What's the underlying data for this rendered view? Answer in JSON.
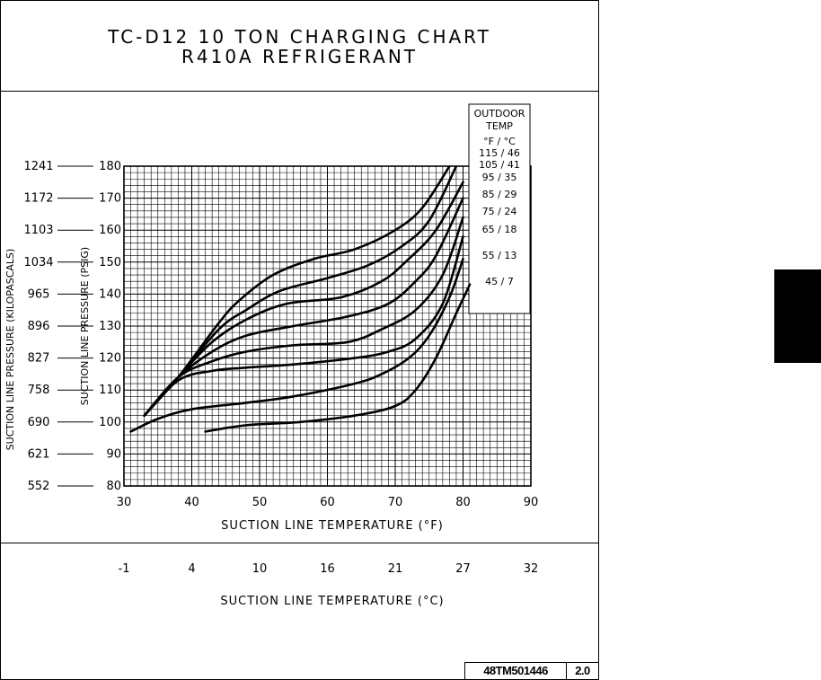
{
  "title_line1": "TC-D12 10 TON CHARGING CHART",
  "title_line2": "R410A REFRIGERANT",
  "doc_number": "48TM501446",
  "doc_version": "2.0",
  "chart_data": {
    "type": "line",
    "xlabel": "SUCTION LINE TEMPERATURE (°F)",
    "ylabel": "SUCTION LINE PRESSURE (PSIG)",
    "ylabel_secondary": "SUCTION LINE PRESSURE (KILOPASCALS)",
    "xlabel_secondary": "SUCTION LINE TEMPERATURE (°C)",
    "xlim": [
      30,
      90
    ],
    "ylim": [
      80,
      180
    ],
    "x_ticks": [
      30,
      40,
      50,
      60,
      70,
      80,
      90
    ],
    "y_ticks": [
      80,
      90,
      100,
      110,
      120,
      130,
      140,
      150,
      160,
      170,
      180
    ],
    "y_ticks_kpa": [
      "552",
      "621",
      "690",
      "758",
      "827",
      "896",
      "965",
      "1034",
      "1103",
      "1172",
      "1241"
    ],
    "x_ticks_celsius": [
      "-1",
      "4",
      "10",
      "16",
      "21",
      "27",
      "32"
    ],
    "grid": true,
    "legend_title_line1": "OUTDOOR",
    "legend_title_line2": "TEMP",
    "legend_units": "°F / °C",
    "series": [
      {
        "name": "115 / 46",
        "points": [
          [
            33,
            102
          ],
          [
            38,
            114
          ],
          [
            44,
            131
          ],
          [
            47,
            138
          ],
          [
            52,
            146
          ],
          [
            58,
            151
          ],
          [
            64,
            154
          ],
          [
            70,
            160
          ],
          [
            74,
            167
          ],
          [
            78,
            180
          ]
        ]
      },
      {
        "name": "105 / 41",
        "points": [
          [
            33,
            102
          ],
          [
            38,
            114
          ],
          [
            44,
            129
          ],
          [
            48,
            135
          ],
          [
            53,
            141
          ],
          [
            60,
            145
          ],
          [
            66,
            149
          ],
          [
            71,
            155
          ],
          [
            75,
            163
          ],
          [
            79,
            180
          ]
        ]
      },
      {
        "name": "95 / 35",
        "points": [
          [
            33,
            102
          ],
          [
            38,
            114
          ],
          [
            43,
            125
          ],
          [
            48,
            132
          ],
          [
            54,
            137
          ],
          [
            62,
            139
          ],
          [
            68,
            144
          ],
          [
            72,
            151
          ],
          [
            76,
            160
          ],
          [
            80,
            175
          ]
        ]
      },
      {
        "name": "85 / 29",
        "points": [
          [
            33,
            102
          ],
          [
            38,
            114
          ],
          [
            43,
            122
          ],
          [
            48,
            127
          ],
          [
            55,
            130
          ],
          [
            63,
            133
          ],
          [
            69,
            137
          ],
          [
            73,
            144
          ],
          [
            76,
            152
          ],
          [
            80,
            170
          ]
        ]
      },
      {
        "name": "75 / 24",
        "points": [
          [
            33,
            102
          ],
          [
            38,
            114
          ],
          [
            43,
            119
          ],
          [
            48,
            122
          ],
          [
            55,
            124
          ],
          [
            63,
            125
          ],
          [
            68,
            129
          ],
          [
            73,
            135
          ],
          [
            77,
            146
          ],
          [
            80,
            164
          ]
        ]
      },
      {
        "name": "65 / 18",
        "points": [
          [
            33,
            102
          ],
          [
            38,
            113
          ],
          [
            43,
            116
          ],
          [
            48,
            117
          ],
          [
            55,
            118
          ],
          [
            64,
            120
          ],
          [
            69,
            122
          ],
          [
            73,
            126
          ],
          [
            77,
            137
          ],
          [
            80,
            158
          ]
        ]
      },
      {
        "name": "55 / 13",
        "points": [
          [
            31,
            97
          ],
          [
            35,
            101
          ],
          [
            40,
            104
          ],
          [
            48,
            106
          ],
          [
            55,
            108
          ],
          [
            64,
            112
          ],
          [
            68,
            115
          ],
          [
            72,
            120
          ],
          [
            75,
            127
          ],
          [
            78,
            139
          ],
          [
            80,
            151
          ]
        ]
      },
      {
        "name": "45 / 7",
        "points": [
          [
            42,
            97
          ],
          [
            48,
            99
          ],
          [
            56,
            100
          ],
          [
            64,
            102
          ],
          [
            70,
            105
          ],
          [
            73,
            110
          ],
          [
            76,
            120
          ],
          [
            79,
            134
          ],
          [
            81,
            143
          ]
        ]
      }
    ]
  }
}
